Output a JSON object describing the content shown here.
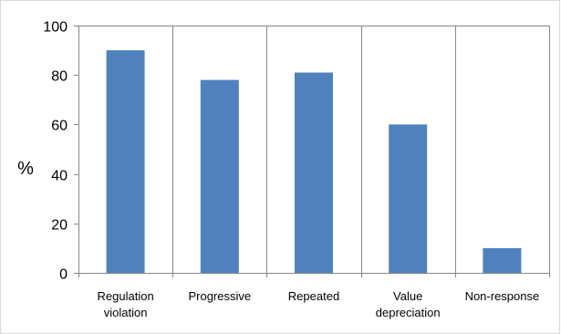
{
  "chart_data": {
    "type": "bar",
    "title": "",
    "xlabel": "",
    "ylabel": "%",
    "categories": [
      [
        "Regulation",
        "violation"
      ],
      [
        "Progressive"
      ],
      [
        "Repeated"
      ],
      [
        "Value",
        "depreciation"
      ],
      [
        "Non-response"
      ]
    ],
    "values": [
      90,
      78,
      81,
      60,
      10
    ],
    "ylim": [
      0,
      100
    ],
    "yticks": [
      0,
      20,
      40,
      60,
      80,
      100
    ],
    "grid": "vertical category separators",
    "legend": "none",
    "bar_color": "#4F81BD",
    "gridline_color": "#868686"
  }
}
